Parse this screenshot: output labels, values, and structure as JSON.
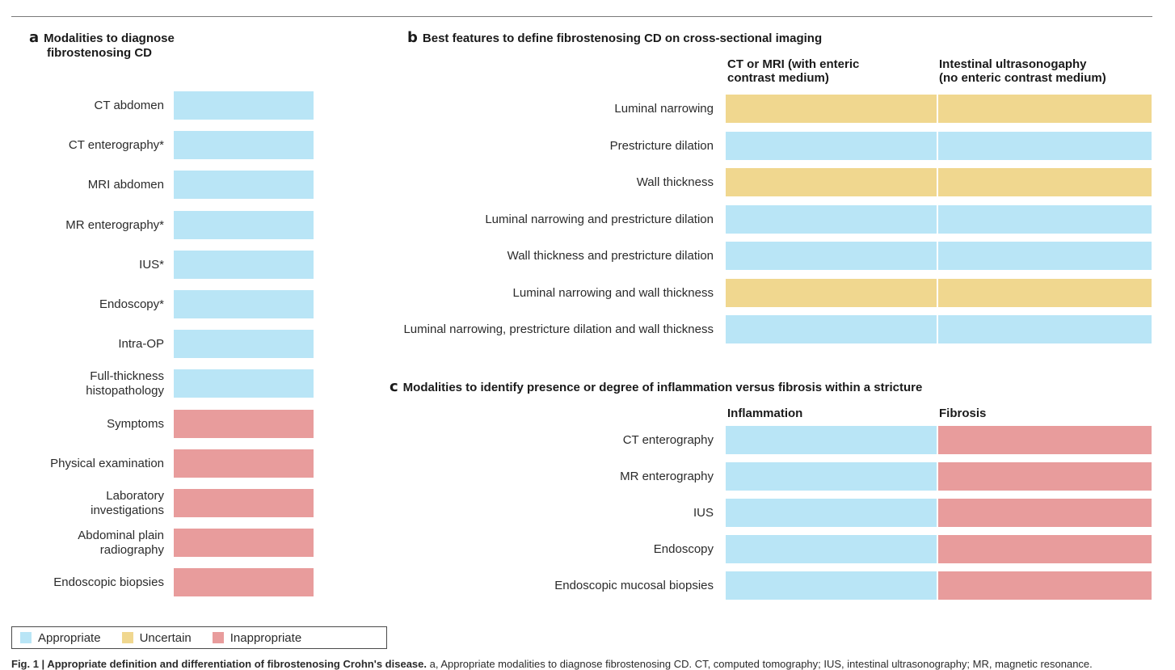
{
  "colors": {
    "appropriate": "#b9e5f6",
    "uncertain": "#f0d78f",
    "inappropriate": "#e89c9c"
  },
  "panel_a": {
    "letter": "a",
    "title_line1": "Modalities to diagnose",
    "title_line2": "fibrostenosing CD",
    "rows": [
      {
        "label": "CT abdomen",
        "rating": "appropriate"
      },
      {
        "label": "CT enterography*",
        "rating": "appropriate"
      },
      {
        "label": "MRI abdomen",
        "rating": "appropriate"
      },
      {
        "label": "MR enterography*",
        "rating": "appropriate"
      },
      {
        "label": "IUS*",
        "rating": "appropriate"
      },
      {
        "label": "Endoscopy*",
        "rating": "appropriate"
      },
      {
        "label": "Intra-OP",
        "rating": "appropriate"
      },
      {
        "label": "Full-thickness histopathology",
        "label_line1": "Full-thickness",
        "label_line2": "histopathology",
        "rating": "appropriate"
      },
      {
        "label": "Symptoms",
        "rating": "inappropriate"
      },
      {
        "label": "Physical examination",
        "rating": "inappropriate"
      },
      {
        "label": "Laboratory investigations",
        "label_line1": "Laboratory",
        "label_line2": "investigations",
        "rating": "inappropriate"
      },
      {
        "label": "Abdominal plain radiography",
        "label_line1": "Abdominal plain",
        "label_line2": "radiography",
        "rating": "inappropriate"
      },
      {
        "label": "Endoscopic biopsies",
        "rating": "inappropriate"
      }
    ]
  },
  "panel_b": {
    "letter": "b",
    "title": "Best features to define fibrostenosing CD on cross-sectional imaging",
    "columns": [
      {
        "line1": "CT or MRI (with enteric",
        "line2": "contrast medium)"
      },
      {
        "line1": "Intestinal ultrasonogaphy",
        "line2": "(no enteric contrast medium)"
      }
    ],
    "rows": [
      {
        "label": "Luminal narrowing",
        "ratings": [
          "uncertain",
          "uncertain"
        ]
      },
      {
        "label": "Prestricture dilation",
        "ratings": [
          "appropriate",
          "appropriate"
        ]
      },
      {
        "label": "Wall thickness",
        "ratings": [
          "uncertain",
          "uncertain"
        ]
      },
      {
        "label": "Luminal narrowing and prestricture dilation",
        "ratings": [
          "appropriate",
          "appropriate"
        ]
      },
      {
        "label": "Wall thickness and prestricture dilation",
        "ratings": [
          "appropriate",
          "appropriate"
        ]
      },
      {
        "label": "Luminal narrowing and wall thickness",
        "ratings": [
          "uncertain",
          "uncertain"
        ]
      },
      {
        "label": "Luminal narrowing, prestricture dilation and wall thickness",
        "ratings": [
          "appropriate",
          "appropriate"
        ]
      }
    ]
  },
  "panel_c": {
    "letter": "c",
    "title": "Modalities to identify presence or degree of inflammation versus fibrosis within a stricture",
    "columns": [
      "Inflammation",
      "Fibrosis"
    ],
    "rows": [
      {
        "label": "CT enterography",
        "ratings": [
          "appropriate",
          "inappropriate"
        ]
      },
      {
        "label": "MR enterography",
        "ratings": [
          "appropriate",
          "inappropriate"
        ]
      },
      {
        "label": "IUS",
        "ratings": [
          "appropriate",
          "inappropriate"
        ]
      },
      {
        "label": "Endoscopy",
        "ratings": [
          "appropriate",
          "inappropriate"
        ]
      },
      {
        "label": "Endoscopic mucosal biopsies",
        "ratings": [
          "appropriate",
          "inappropriate"
        ]
      }
    ]
  },
  "legend": {
    "appropriate": "Appropriate",
    "uncertain": "Uncertain",
    "inappropriate": "Inappropriate"
  },
  "caption": {
    "bold": "Fig. 1 | Appropriate definition and differentiation of fibrostenosing Crohn's disease.",
    "text": " a, Appropriate modalities to diagnose fibrostenosing CD. CT, computed tomography; IUS, intestinal ultrasonography; MR, magnetic resonance."
  }
}
